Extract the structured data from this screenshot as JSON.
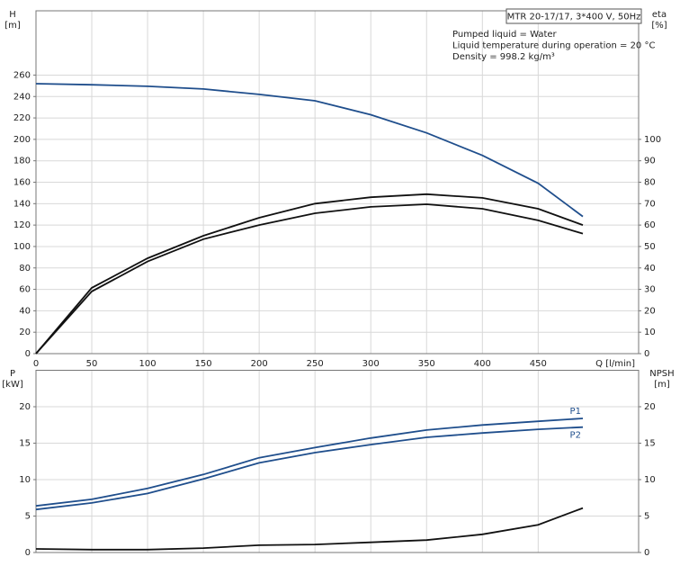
{
  "chart_data": [
    {
      "type": "line",
      "x": [
        0,
        50,
        100,
        150,
        200,
        250,
        300,
        350,
        400,
        450,
        490
      ],
      "xlim": [
        0,
        540
      ],
      "xticks": [
        0,
        50,
        100,
        150,
        200,
        250,
        300,
        350,
        400,
        450
      ],
      "x_label": "Q [l/min]",
      "ylim": [
        0,
        320
      ],
      "yticks": [
        0,
        20,
        40,
        60,
        80,
        100,
        120,
        140,
        160,
        180,
        200,
        220,
        240,
        260
      ],
      "y_label": "H",
      "y_unit": "[m]",
      "y2lim": [
        0,
        160
      ],
      "y2ticks": [
        0,
        10,
        20,
        30,
        40,
        50,
        60,
        70,
        80,
        90,
        100
      ],
      "y2_label": "eta",
      "y2_unit": "[%]",
      "grid": true,
      "box_title": "MTR 20-17/17, 3*400 V, 50Hz",
      "notes": [
        "Pumped liquid = Water",
        "Liquid temperature during operation = 20 °C",
        "Density = 998.2 kg/m³"
      ],
      "series": [
        {
          "color": "#1f4e8c",
          "values": [
            252,
            251,
            249.5,
            247,
            242,
            236,
            223,
            206,
            185,
            159,
            128
          ]
        },
        {
          "color": "#111111",
          "axis": "y2",
          "values": [
            0,
            30.7,
            44.5,
            55,
            63.4,
            70,
            73,
            74.4,
            72.7,
            67.6,
            60
          ]
        },
        {
          "color": "#111111",
          "axis": "y2",
          "values": [
            0,
            29,
            43,
            53.4,
            60,
            65.5,
            68.5,
            69.7,
            67.6,
            62.2,
            56
          ]
        }
      ]
    },
    {
      "type": "line",
      "x": [
        0,
        50,
        100,
        150,
        200,
        250,
        300,
        350,
        400,
        450,
        490
      ],
      "xlim": [
        0,
        540
      ],
      "xticks": [
        0,
        50,
        100,
        150,
        200,
        250,
        300,
        350,
        400,
        450
      ],
      "ylim": [
        0,
        25
      ],
      "yticks": [
        0,
        5,
        10,
        15,
        20
      ],
      "y_label": "P",
      "y_unit": "[kW]",
      "y2lim": [
        0,
        25
      ],
      "y2ticks": [
        0,
        5,
        10,
        15,
        20
      ],
      "y2_label": "NPSH",
      "y2_unit": "[m]",
      "grid": true,
      "series": [
        {
          "name": "P1",
          "color": "#1f4e8c",
          "values": [
            6.4,
            7.3,
            8.8,
            10.7,
            13,
            14.4,
            15.7,
            16.8,
            17.5,
            18,
            18.4
          ]
        },
        {
          "name": "P2",
          "color": "#1f4e8c",
          "values": [
            5.9,
            6.8,
            8.1,
            10.1,
            12.3,
            13.7,
            14.8,
            15.8,
            16.4,
            16.9,
            17.2
          ]
        },
        {
          "color": "#111111",
          "axis": "y2",
          "values": [
            0.5,
            0.4,
            0.4,
            0.6,
            1.0,
            1.1,
            1.4,
            1.7,
            2.5,
            3.8,
            6.1
          ]
        }
      ]
    }
  ]
}
